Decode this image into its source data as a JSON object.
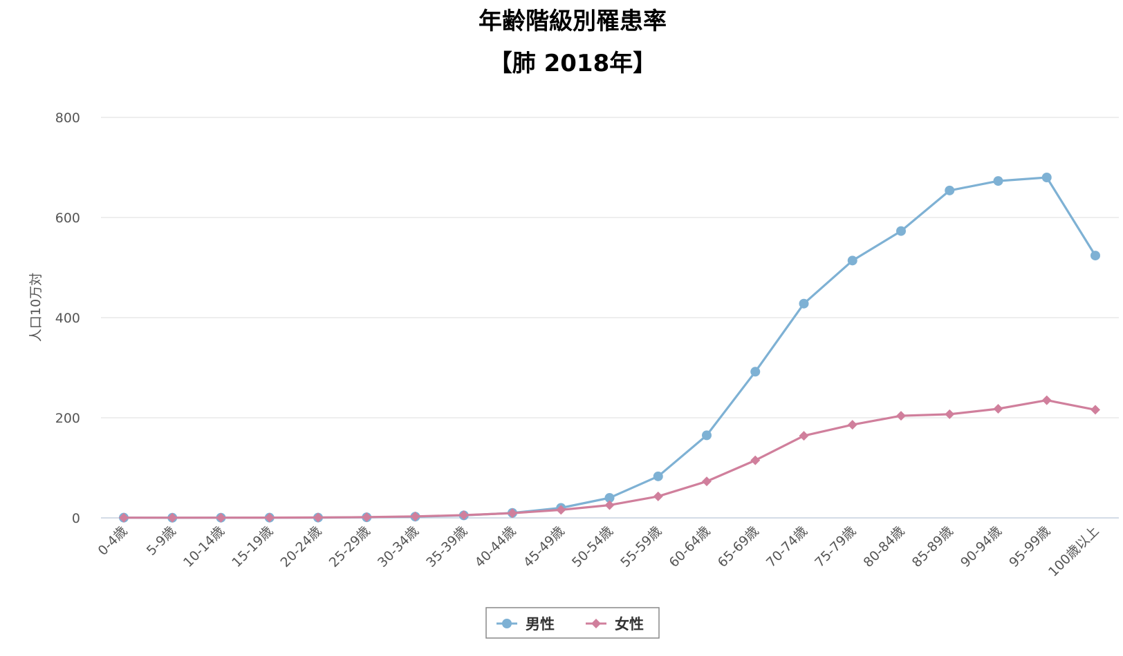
{
  "chart_data": {
    "type": "line",
    "title": "年齢階級別罹患率",
    "subtitle": "【肺 2018年】",
    "ylabel": "人口10万対",
    "xlabel": "",
    "ylim": [
      0,
      800
    ],
    "yticks": [
      0,
      200,
      400,
      600,
      800
    ],
    "grid": true,
    "legend_position": "bottom-center",
    "categories": [
      "0-4歳",
      "5-9歳",
      "10-14歳",
      "15-19歳",
      "20-24歳",
      "25-29歳",
      "30-34歳",
      "35-39歳",
      "40-44歳",
      "45-49歳",
      "50-54歳",
      "55-59歳",
      "60-64歳",
      "65-69歳",
      "70-74歳",
      "75-79歳",
      "80-84歳",
      "85-89歳",
      "90-94歳",
      "95-99歳",
      "100歳以上"
    ],
    "series": [
      {
        "name": "男性",
        "color": "#7eb1d4",
        "marker": "circle",
        "values": [
          0.5,
          0.3,
          0.4,
          0.5,
          0.6,
          1.2,
          2.5,
          5,
          10,
          20,
          40,
          83,
          165,
          292,
          428,
          514,
          573,
          654,
          673,
          680,
          524
        ]
      },
      {
        "name": "女性",
        "color": "#d07f9c",
        "marker": "diamond",
        "values": [
          0.4,
          0.4,
          0.4,
          0.5,
          0.8,
          1.5,
          3,
          5.5,
          9.5,
          16,
          25.5,
          43,
          73,
          115,
          164,
          186,
          204,
          207,
          218,
          235,
          216
        ]
      }
    ]
  }
}
